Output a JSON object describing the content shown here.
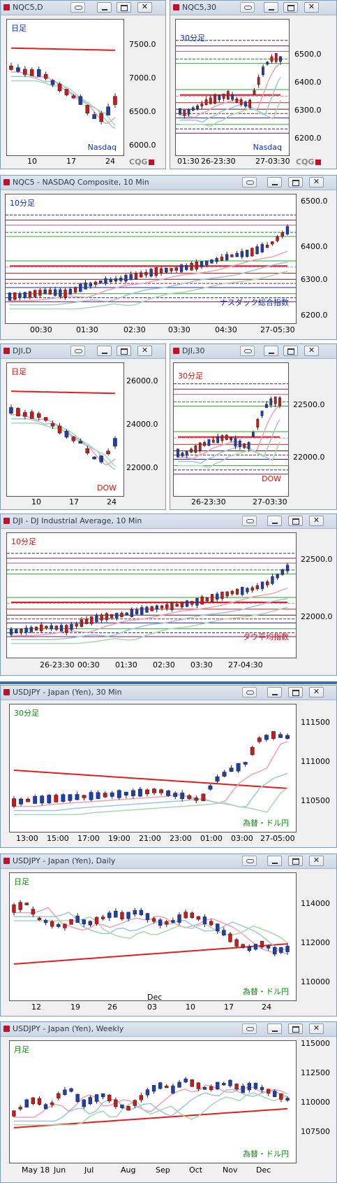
{
  "colors": {
    "up": "#1f3fb0",
    "down": "#d01818",
    "ma_long": "#e02020",
    "ma_mid": "#f2a0b4",
    "ma_short": "#9ec4e4",
    "ma_green": "#a8d8b0"
  },
  "panels": [
    {
      "key": "nq_daily",
      "title": "NQC5,D",
      "buttons": true,
      "plot_label": "日足",
      "plot_label_color": "#1030c0",
      "corner_label": "Nasdaq",
      "corner_label_color": "#1030c0",
      "y_ticks": [
        "7500.0",
        "7000.0",
        "6500.0",
        "6000.0"
      ],
      "x_ticks": [
        "10",
        "17",
        "24"
      ],
      "cqg": "CQG",
      "level_lines": false
    },
    {
      "key": "nq_30m",
      "title": "NQC5,30",
      "buttons": true,
      "plot_label": "30分足",
      "plot_label_color": "#1030c0",
      "corner_label": "Nasdaq",
      "corner_label_color": "#1030c0",
      "y_ticks": [
        "6500.0",
        "6400.0",
        "6300.0",
        "6200.0"
      ],
      "x_ticks": [
        "01:30",
        "26-23:30",
        "27-03:30"
      ],
      "cqg": "CQG",
      "level_lines": true
    },
    {
      "key": "nq_10m",
      "title": "NQC5 - NASDAQ Composite, 10 Min",
      "buttons": true,
      "plot_label": "10分足",
      "plot_label_color": "#1030c0",
      "corner_label": "ナスダック総合指数",
      "corner_label_color": "#1030c0",
      "y_ticks": [
        "6500.0",
        "6400.0",
        "6300.0",
        "6200.0"
      ],
      "x_ticks": [
        "00:30",
        "01:30",
        "02:30",
        "03:30",
        "04:30",
        "27-05:30"
      ],
      "level_lines": true
    },
    {
      "key": "dji_daily",
      "title": "DJI,D",
      "buttons": true,
      "plot_label": "日足",
      "plot_label_color": "#e01010",
      "corner_label": "DOW",
      "corner_label_color": "#e01010",
      "y_ticks": [
        "26000.0",
        "24000.0",
        "22000.0"
      ],
      "x_ticks": [
        "10",
        "17",
        "24"
      ],
      "level_lines": false
    },
    {
      "key": "dji_30m",
      "title": "DJI,30",
      "buttons": true,
      "plot_label": "30分足",
      "plot_label_color": "#e01010",
      "corner_label": "DOW",
      "corner_label_color": "#e01010",
      "y_ticks": [
        "22500.0",
        "22000.0"
      ],
      "x_ticks": [
        "26-23:30",
        "27-03:30"
      ],
      "level_lines": true
    },
    {
      "key": "dji_10m",
      "title": "DJI - DJ Industrial Average, 10 Min",
      "buttons": true,
      "plot_label": "10分足",
      "plot_label_color": "#e01010",
      "corner_label": "ダウ平均指数",
      "corner_label_color": "#e01010",
      "y_ticks": [
        "22500.0",
        "22000.0"
      ],
      "x_ticks": [
        "26-23:30",
        "00:30",
        "01:30",
        "02:30",
        "03:30",
        "27-04:30"
      ],
      "level_lines": true
    },
    {
      "key": "usdjpy_30m",
      "title": "USDJPY - Japan (Yen), 30 Min",
      "buttons": true,
      "plot_label": "30分足",
      "plot_label_color": "#108a10",
      "corner_label": "為替・ドル円",
      "corner_label_color": "#108a10",
      "y_ticks": [
        "111500",
        "111000",
        "110500"
      ],
      "x_ticks": [
        "13:00",
        "15:00",
        "17:00",
        "19:00",
        "21:00",
        "23:00",
        "01:00",
        "03:00",
        "27-05:00"
      ],
      "level_lines": false
    },
    {
      "key": "usdjpy_daily",
      "title": "USDJPY - Japan (Yen), Daily",
      "buttons": true,
      "plot_label": "日足",
      "plot_label_color": "#108a10",
      "corner_label": "為替・ドル円",
      "corner_label_color": "#108a10",
      "y_ticks": [
        "114000",
        "112000",
        "110000"
      ],
      "x_ticks": [
        "12",
        "19",
        "26",
        "03",
        "10",
        "17",
        "24"
      ],
      "x_extra": "Dec",
      "level_lines": false
    },
    {
      "key": "usdjpy_weekly",
      "title": "USDJPY - Japan (Yen), Weekly",
      "buttons": true,
      "plot_label": "月足",
      "plot_label_color": "#108a10",
      "corner_label": "為替・ドル円",
      "corner_label_color": "#108a10",
      "y_ticks": [
        "115000",
        "112500",
        "110000",
        "107500"
      ],
      "x_ticks": [
        "May 18",
        "Jun",
        "Jul",
        "Aug",
        "Sep",
        "Oct",
        "Nov",
        "Dec"
      ],
      "level_lines": false
    }
  ]
}
